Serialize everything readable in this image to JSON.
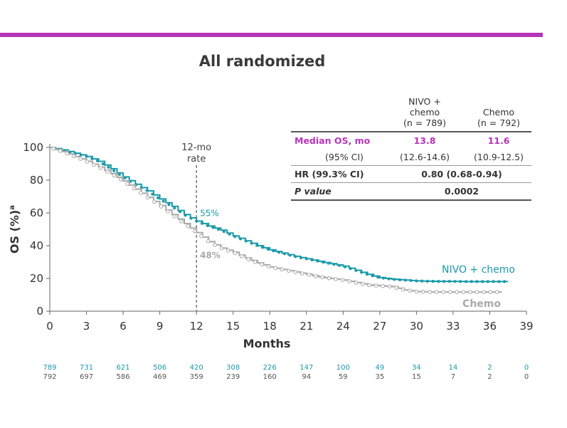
{
  "header_bar_color": "#b535b8",
  "title": "All randomized",
  "table": {
    "col1_header": [
      "NIVO +",
      "chemo",
      "(n = 789)"
    ],
    "col2_header": [
      "Chemo",
      "(n = 792)"
    ],
    "rows": {
      "median": {
        "label": "Median OS, mo",
        "v1": "13.8",
        "v2": "11.6"
      },
      "ci": {
        "label": "(95% CI)",
        "v1": "(12.6-14.6)",
        "v2": "(10.9-12.5)"
      },
      "hr": {
        "label": "HR (99.3% CI)",
        "value": "0.80 (0.68-0.94)"
      },
      "p": {
        "label": "P value",
        "value": "0.0002"
      }
    }
  },
  "chart_data": {
    "type": "line",
    "title": "All randomized",
    "xlabel": "Months",
    "ylabel": "OS (%)",
    "ylabel_sup": "a",
    "xlim": [
      0,
      39
    ],
    "ylim": [
      0,
      100
    ],
    "x_ticks": [
      0,
      3,
      6,
      9,
      12,
      15,
      18,
      21,
      24,
      27,
      30,
      33,
      36,
      39
    ],
    "y_ticks": [
      0,
      20,
      40,
      60,
      80,
      100
    ],
    "reference_line": {
      "x": 12,
      "label": [
        "12-mo",
        "rate"
      ]
    },
    "annotations": [
      {
        "series": "NIVO + chemo",
        "text": "55%",
        "x": 12,
        "y": 55
      },
      {
        "series": "Chemo",
        "text": "48%",
        "x": 12,
        "y": 48
      }
    ],
    "series": [
      {
        "name": "NIVO + chemo",
        "label": "NIVO + chemo",
        "color": "#1a9aa8",
        "points": [
          [
            0,
            100
          ],
          [
            1,
            98.5
          ],
          [
            2,
            96.5
          ],
          [
            3,
            94.5
          ],
          [
            4,
            91.5
          ],
          [
            5,
            87
          ],
          [
            6,
            82
          ],
          [
            7,
            77.5
          ],
          [
            8,
            73.5
          ],
          [
            9,
            68.5
          ],
          [
            10,
            64
          ],
          [
            11,
            59
          ],
          [
            12,
            55
          ],
          [
            13,
            52
          ],
          [
            14,
            49.5
          ],
          [
            15,
            46
          ],
          [
            16,
            43
          ],
          [
            17,
            40
          ],
          [
            18,
            37.5
          ],
          [
            19,
            35.5
          ],
          [
            20,
            33.5
          ],
          [
            21,
            32
          ],
          [
            22,
            30.5
          ],
          [
            23,
            29
          ],
          [
            24,
            27.5
          ],
          [
            25,
            25
          ],
          [
            26,
            22.5
          ],
          [
            27,
            20.5
          ],
          [
            28,
            19.5
          ],
          [
            29,
            19
          ],
          [
            30,
            18.5
          ],
          [
            31,
            18.3
          ],
          [
            32,
            18.2
          ],
          [
            33,
            18.2
          ],
          [
            34,
            18.1
          ],
          [
            35,
            18.1
          ],
          [
            36,
            18.1
          ],
          [
            37,
            18.1
          ],
          [
            37.5,
            18.1
          ]
        ]
      },
      {
        "name": "Chemo",
        "label": "Chemo",
        "color": "#a9a9a9",
        "points": [
          [
            0,
            100
          ],
          [
            1,
            97.5
          ],
          [
            2,
            94.5
          ],
          [
            3,
            91.5
          ],
          [
            4,
            88
          ],
          [
            5,
            84
          ],
          [
            6,
            79.5
          ],
          [
            7,
            74.5
          ],
          [
            8,
            69.5
          ],
          [
            9,
            64.5
          ],
          [
            10,
            59
          ],
          [
            11,
            53.5
          ],
          [
            12,
            48
          ],
          [
            13,
            42.5
          ],
          [
            14,
            38.5
          ],
          [
            15,
            36
          ],
          [
            16,
            32.5
          ],
          [
            17,
            29.5
          ],
          [
            18,
            27
          ],
          [
            19,
            25.5
          ],
          [
            20,
            24
          ],
          [
            21,
            22.5
          ],
          [
            22,
            21
          ],
          [
            23,
            20
          ],
          [
            24,
            19
          ],
          [
            25,
            17.5
          ],
          [
            26,
            16
          ],
          [
            27,
            15.5
          ],
          [
            28,
            15
          ],
          [
            29,
            13
          ],
          [
            30,
            12
          ],
          [
            31,
            11.8
          ],
          [
            32,
            11.7
          ],
          [
            33,
            11.7
          ],
          [
            34,
            11.7
          ],
          [
            35,
            11.7
          ],
          [
            36,
            11.7
          ],
          [
            37,
            11.7
          ]
        ]
      }
    ],
    "at_risk": [
      {
        "series": "NIVO + chemo",
        "color": "#1a9aa8",
        "values": [
          "789",
          "731",
          "621",
          "506",
          "420",
          "308",
          "226",
          "147",
          "100",
          "49",
          "34",
          "14",
          "2",
          "0"
        ]
      },
      {
        "series": "Chemo",
        "color": "#555555",
        "values": [
          "792",
          "697",
          "586",
          "469",
          "359",
          "239",
          "160",
          "94",
          "59",
          "35",
          "15",
          "7",
          "2",
          "0"
        ]
      }
    ]
  }
}
